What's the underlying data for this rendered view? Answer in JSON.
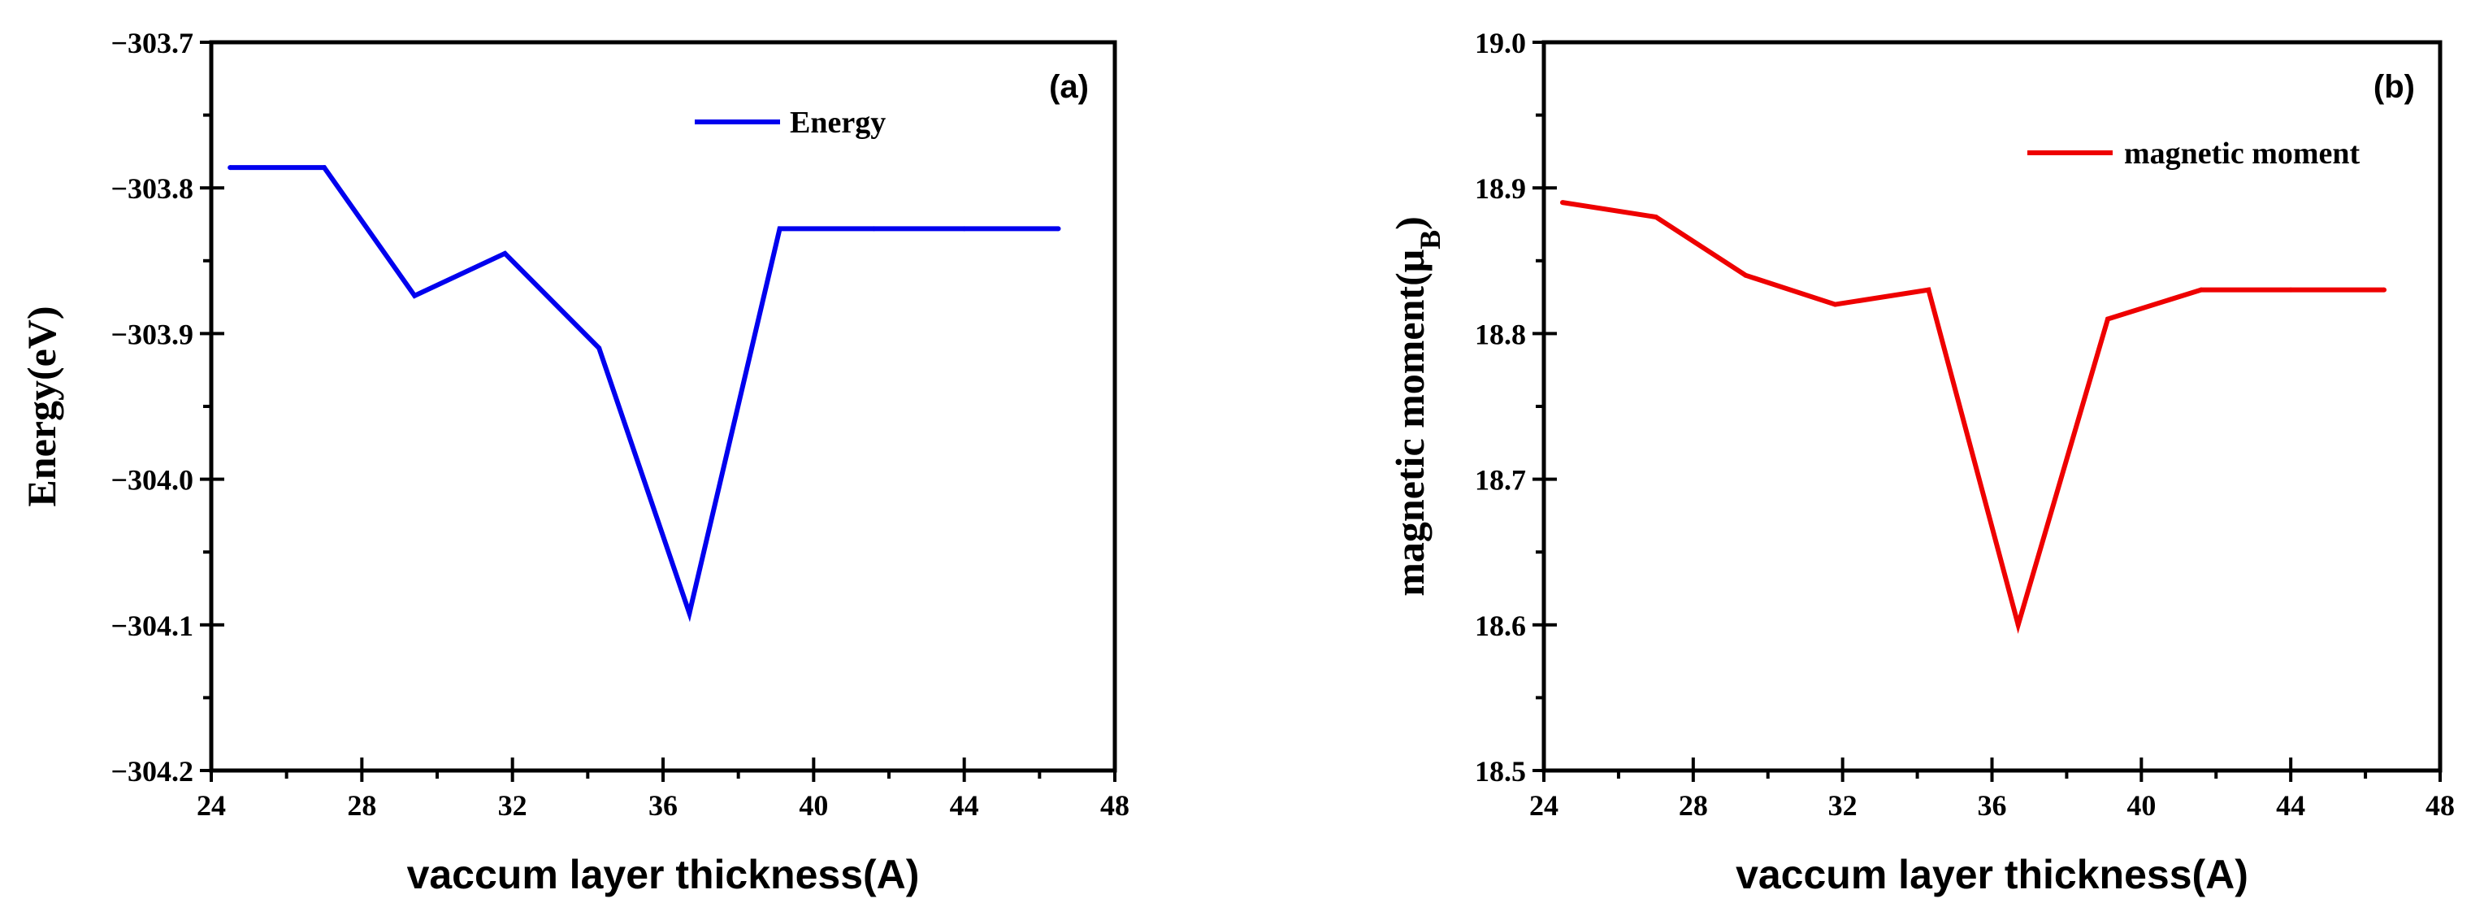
{
  "chart_data": [
    {
      "type": "line",
      "panel_label": "(a)",
      "title": "",
      "xlabel": "vaccum layer thickness(A)",
      "ylabel": "Energy(eV)",
      "xlim": [
        24,
        48
      ],
      "ylim": [
        -304.2,
        -303.7
      ],
      "xticks": [
        24,
        28,
        32,
        36,
        40,
        44,
        48
      ],
      "xtick_labels": [
        "24",
        "28",
        "32",
        "36",
        "40",
        "44",
        "48"
      ],
      "yticks": [
        -304.2,
        -304.1,
        -304.0,
        -303.9,
        -303.8,
        -303.7
      ],
      "ytick_labels": [
        "−304.2",
        "−304.1",
        "−304.0",
        "−303.9",
        "−303.8",
        "−303.7"
      ],
      "grid": false,
      "legend_position": "top-center",
      "series": [
        {
          "name": "Energy",
          "color": "#0000ee",
          "x": [
            24.5,
            27.0,
            29.4,
            31.8,
            34.3,
            36.7,
            39.1,
            41.6,
            44.0,
            46.5
          ],
          "values": [
            -303.786,
            -303.786,
            -303.874,
            -303.845,
            -303.91,
            -304.092,
            -303.828,
            -303.828,
            -303.828,
            -303.828
          ]
        }
      ]
    },
    {
      "type": "line",
      "panel_label": "(b)",
      "title": "",
      "xlabel": "vaccum layer thickness(A)",
      "ylabel_main": "magnetic moment(μ",
      "ylabel_sub": "B",
      "ylabel_close": ")",
      "xlim": [
        24,
        48
      ],
      "ylim": [
        18.5,
        19.0
      ],
      "xticks": [
        24,
        28,
        32,
        36,
        40,
        44,
        48
      ],
      "xtick_labels": [
        "24",
        "28",
        "32",
        "36",
        "40",
        "44",
        "48"
      ],
      "yticks": [
        18.5,
        18.6,
        18.7,
        18.8,
        18.9,
        19.0
      ],
      "ytick_labels": [
        "18.5",
        "18.6",
        "18.7",
        "18.8",
        "18.9",
        "19.0"
      ],
      "grid": false,
      "legend_position": "top-right",
      "series": [
        {
          "name": "magnetic moment",
          "color": "#ee0000",
          "x": [
            24.5,
            27.0,
            29.4,
            31.8,
            34.3,
            36.7,
            39.1,
            41.6,
            44.0,
            46.5
          ],
          "values": [
            18.89,
            18.88,
            18.84,
            18.82,
            18.83,
            18.6,
            18.81,
            18.83,
            18.83,
            18.83
          ]
        }
      ]
    }
  ]
}
